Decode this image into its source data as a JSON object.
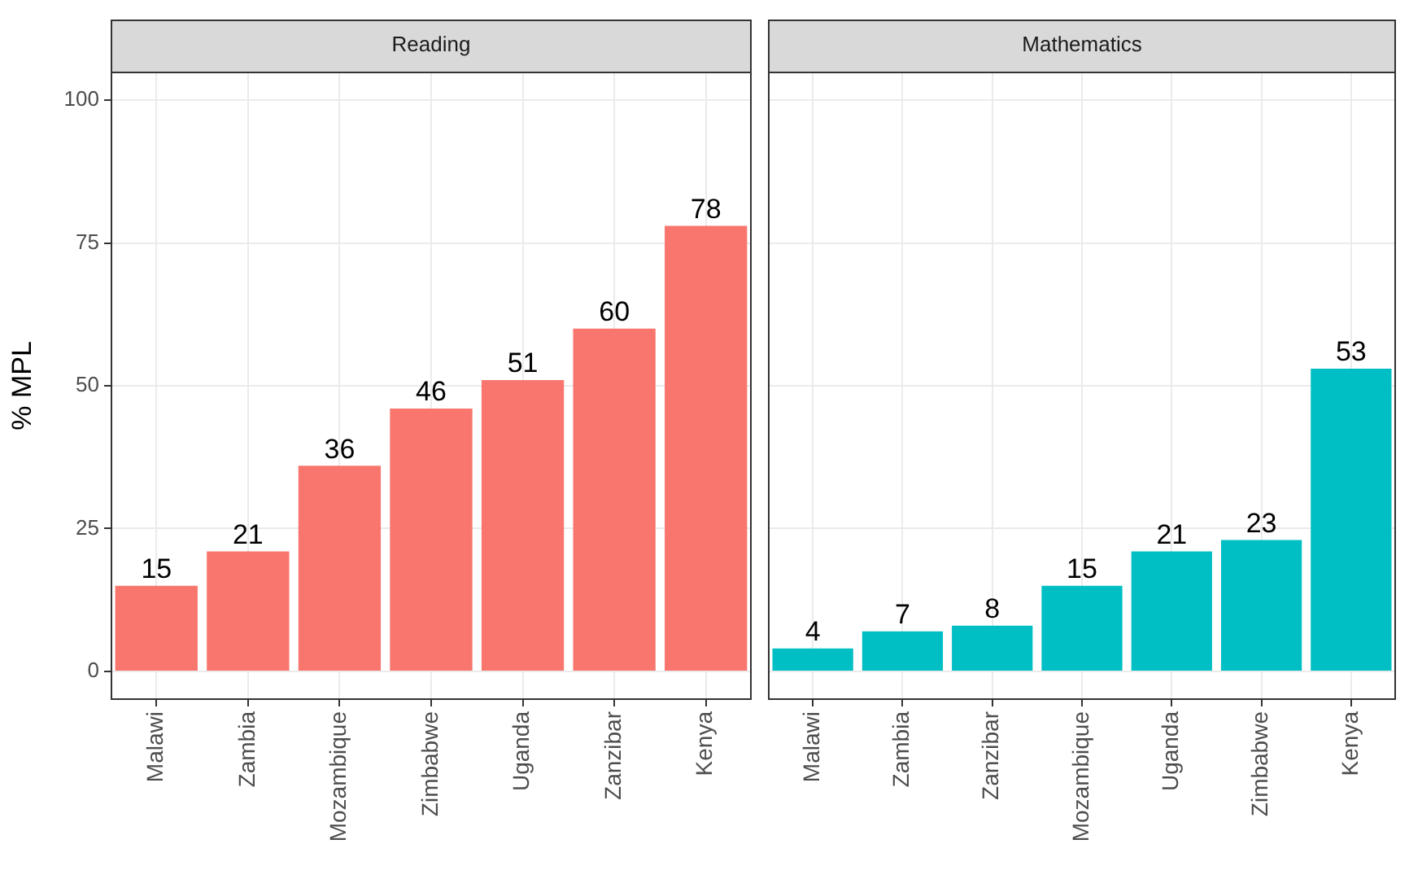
{
  "chart_data": [
    {
      "type": "bar",
      "title": "Reading",
      "ylabel": "% MPL",
      "categories": [
        "Malawi",
        "Zambia",
        "Mozambique",
        "Zimbabwe",
        "Uganda",
        "Zanzibar",
        "Kenya"
      ],
      "values": [
        15,
        21,
        36,
        46,
        51,
        60,
        78
      ],
      "color": "#f8766d",
      "ylim": [
        -5,
        105
      ],
      "yticks": [
        0,
        25,
        50,
        75,
        100
      ],
      "grid": true,
      "data_labels": true
    },
    {
      "type": "bar",
      "title": "Mathematics",
      "categories": [
        "Malawi",
        "Zambia",
        "Zanzibar",
        "Mozambique",
        "Uganda",
        "Zimbabwe",
        "Kenya"
      ],
      "values": [
        4,
        7,
        8,
        15,
        21,
        23,
        53
      ],
      "color": "#00bfc4",
      "ylim": [
        -5,
        105
      ],
      "yticks": [
        0,
        25,
        50,
        75,
        100
      ],
      "grid": true,
      "data_labels": true,
      "tick_labels": "x"
    }
  ]
}
